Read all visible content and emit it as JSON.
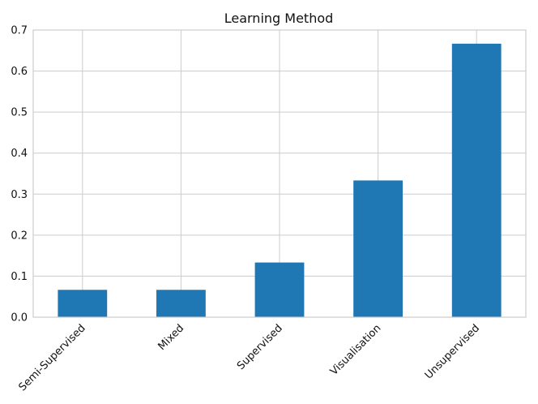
{
  "chart_data": {
    "type": "bar",
    "title": "Learning Method",
    "xlabel": "",
    "ylabel": "",
    "categories": [
      "Semi-Supervised",
      "Mixed",
      "Supervised",
      "Visualisation",
      "Unsupervised"
    ],
    "values": [
      0.0667,
      0.0667,
      0.1333,
      0.3333,
      0.6667
    ],
    "ylim": [
      0,
      0.7
    ],
    "yticks": [
      "0.0",
      "0.1",
      "0.2",
      "0.3",
      "0.4",
      "0.5",
      "0.6",
      "0.7"
    ],
    "grid": true,
    "legend": "none",
    "bar_color": "#1f77b4"
  }
}
